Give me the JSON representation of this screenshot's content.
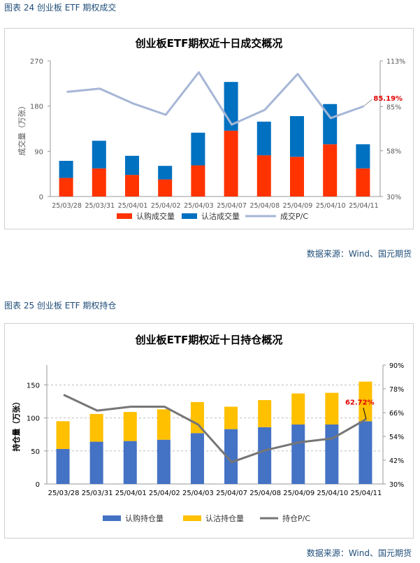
{
  "figure1": {
    "caption": "图表 24 创业板 ETF 期权成交",
    "source": "数据来源：Wind、国元期货"
  },
  "figure2": {
    "caption": "图表 25 创业板 ETF 期权持仓",
    "source": "数据来源：Wind、国元期货"
  },
  "colors": {
    "call_volume": "#ff3300",
    "put_volume": "#0070c0",
    "volume_pc": "#a6b6d6",
    "call_oi": "#4472c4",
    "put_oi": "#ffc000",
    "oi_pc": "#767676",
    "caption": "#1f4e79",
    "callout": "#e00000"
  },
  "chart_data": [
    {
      "type": "bar",
      "stacked": true,
      "title": "创业板ETF期权近十日成交概况",
      "categories": [
        "25/03/28",
        "25/03/31",
        "25/04/01",
        "25/04/02",
        "25/04/03",
        "25/04/07",
        "25/04/08",
        "25/04/09",
        "25/04/10",
        "25/04/11"
      ],
      "ylabel": "成交量（万张）",
      "ylim": [
        0,
        270
      ],
      "yticks": [
        "0",
        "90",
        "180",
        "270"
      ],
      "y2lim": [
        30,
        113
      ],
      "y2ticks": [
        "30%",
        "58%",
        "85%",
        "113%"
      ],
      "grid": false,
      "legend_position": "bottom",
      "series": [
        {
          "name": "认购成交量",
          "kind": "bar",
          "axis": "left",
          "values": [
            37,
            56,
            43,
            34,
            62,
            131,
            82,
            79,
            104,
            56
          ]
        },
        {
          "name": "认沽成交量",
          "kind": "bar",
          "axis": "left",
          "values": [
            34,
            55,
            38,
            27,
            65,
            97,
            67,
            81,
            80,
            48
          ]
        },
        {
          "name": "成交P/C",
          "kind": "line",
          "axis": "right",
          "values": [
            94,
            96,
            87,
            80,
            106,
            74,
            83,
            105,
            78,
            85.19
          ]
        }
      ],
      "annotation": {
        "text": "85.19%",
        "series": "成交P/C",
        "index": 9
      }
    },
    {
      "type": "bar",
      "stacked": true,
      "title": "创业板ETF期权近十日持仓概况",
      "categories": [
        "25/03/28",
        "25/03/31",
        "25/04/01",
        "25/04/02",
        "25/04/03",
        "25/04/07",
        "25/04/08",
        "25/04/09",
        "25/04/10",
        "25/04/11"
      ],
      "ylabel": "持仓量（万张）",
      "ylim": [
        0,
        180
      ],
      "yticks": [
        "0",
        "50",
        "100",
        "150"
      ],
      "y2lim": [
        30,
        90
      ],
      "y2ticks": [
        "30%",
        "42%",
        "54%",
        "66%",
        "78%",
        "90%"
      ],
      "grid": true,
      "legend_position": "bottom",
      "series": [
        {
          "name": "认购持仓量",
          "kind": "bar",
          "axis": "left",
          "values": [
            53,
            64,
            65,
            67,
            77,
            83,
            86,
            90,
            90,
            95
          ]
        },
        {
          "name": "认沽持仓量",
          "kind": "bar",
          "axis": "left",
          "values": [
            42,
            42,
            44,
            46,
            47,
            34,
            41,
            47,
            48,
            60
          ]
        },
        {
          "name": "持仓P/C",
          "kind": "line",
          "axis": "right",
          "values": [
            75,
            67,
            69,
            69,
            60,
            41,
            47,
            51,
            53,
            62.72
          ]
        }
      ],
      "annotation": {
        "text": "62.72%",
        "series": "持仓P/C",
        "index": 9
      }
    }
  ]
}
